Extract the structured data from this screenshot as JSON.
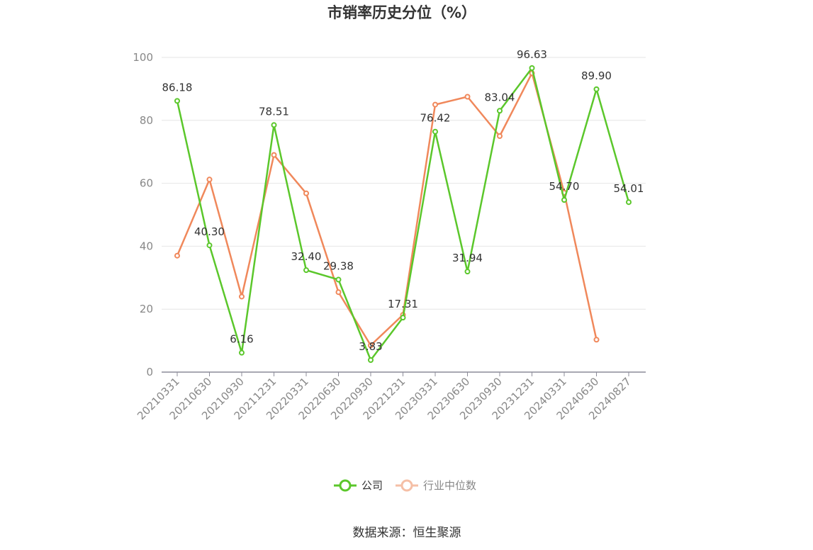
{
  "chart_data": {
    "type": "line",
    "title": "市销率历史分位（%）",
    "categories": [
      "20210331",
      "20210630",
      "20210930",
      "20211231",
      "20220331",
      "20220630",
      "20220930",
      "20221231",
      "20230331",
      "20230630",
      "20230930",
      "20231231",
      "20240331",
      "20240630",
      "20240827"
    ],
    "series": [
      {
        "name": "公司",
        "color": "#5bc72b",
        "values": [
          86.18,
          40.3,
          6.16,
          78.51,
          32.4,
          29.38,
          3.83,
          17.31,
          76.42,
          31.94,
          83.04,
          96.63,
          54.7,
          89.9,
          54.01
        ],
        "labels": [
          "86.18",
          "40.30",
          "6.16",
          "78.51",
          "32.40",
          "29.38",
          "3.83",
          "17.31",
          "76.42",
          "31.94",
          "83.04",
          "96.63",
          "54.70",
          "89.90",
          "54.01"
        ]
      },
      {
        "name": "行业中位数",
        "color": "#f0885b",
        "values": [
          37,
          61.2,
          24,
          69,
          56.8,
          25.4,
          8.5,
          18.2,
          85,
          87.5,
          75,
          95,
          57,
          10.3,
          null
        ]
      }
    ],
    "yticks": [
      "0",
      "20",
      "40",
      "60",
      "80",
      "100"
    ],
    "ylim": [
      0,
      100
    ],
    "grid": true,
    "legend_position": "bottom-center"
  },
  "legend": {
    "company_label": "公司",
    "industry_label": "行业中位数"
  },
  "source": "数据来源：恒生聚源"
}
